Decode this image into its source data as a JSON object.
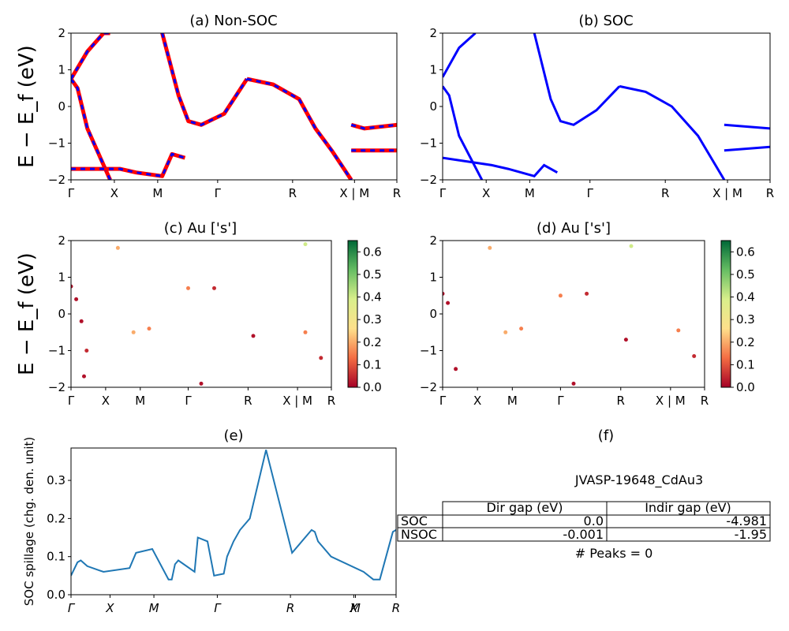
{
  "colors": {
    "red": "#ff0000",
    "blue": "#0000ff",
    "spill": "#1f77b4"
  },
  "k_labels": [
    "Γ",
    "X",
    "M",
    "Γ",
    "R",
    "X | M",
    "R"
  ],
  "k_labels_italic": [
    "Γ",
    "X",
    "M",
    "Γ",
    "R",
    "X",
    "M",
    "R"
  ],
  "energy_ticks": [
    "2",
    "1",
    "0",
    "−1",
    "−2"
  ],
  "energy_axis_label": "E − E_f (eV)",
  "colorbar_ticks": [
    "0.6",
    "0.5",
    "0.4",
    "0.3",
    "0.2",
    "0.1",
    "0.0"
  ],
  "colorbar_colormap": "RdYlGn",
  "chart_data": [
    {
      "id": "a",
      "type": "line",
      "title": "(a) Non-SOC",
      "ylabel": "E − E_f (eV)",
      "ylim": [
        -2,
        2
      ],
      "xticks": [
        "Γ",
        "X",
        "M",
        "Γ",
        "R",
        "X | M",
        "R"
      ],
      "series": [
        {
          "style": "red line with blue dashes",
          "x": [
            0,
            0.02,
            0.05,
            0.12
          ],
          "y": [
            0.75,
            0.5,
            -0.6,
            -2.0
          ]
        },
        {
          "style": "red line with blue dashes",
          "x": [
            0,
            0.05,
            0.1,
            0.12
          ],
          "y": [
            0.75,
            1.5,
            2.0,
            2.0
          ]
        },
        {
          "style": "red line with blue dashes",
          "x": [
            0.28,
            0.33,
            0.36,
            0.4,
            0.47,
            0.54
          ],
          "y": [
            2.0,
            0.3,
            -0.4,
            -0.5,
            -0.2,
            0.75
          ]
        },
        {
          "style": "red line with blue dashes",
          "x": [
            0.54,
            0.62,
            0.7,
            0.75,
            0.8,
            0.86
          ],
          "y": [
            0.75,
            0.6,
            0.2,
            -0.6,
            -1.2,
            -2.0
          ]
        },
        {
          "style": "red line with blue dashes",
          "x": [
            0.0,
            0.15,
            0.2,
            0.28,
            0.31,
            0.35
          ],
          "y": [
            -1.7,
            -1.7,
            -1.8,
            -1.9,
            -1.3,
            -1.4
          ]
        },
        {
          "style": "red line with blue dashes",
          "x": [
            0.86,
            0.9,
            1.0
          ],
          "y": [
            -0.5,
            -0.6,
            -0.5
          ]
        },
        {
          "style": "red line with blue dashes",
          "x": [
            0.86,
            1.0
          ],
          "y": [
            -1.2,
            -1.2
          ]
        }
      ]
    },
    {
      "id": "b",
      "type": "line",
      "title": "(b) SOC",
      "ylabel": "",
      "ylim": [
        -2,
        2
      ],
      "xticks": [
        "Γ",
        "X",
        "M",
        "Γ",
        "R",
        "X | M",
        "R"
      ],
      "series": [
        {
          "style": "blue",
          "x": [
            0,
            0.02,
            0.05,
            0.12
          ],
          "y": [
            0.55,
            0.3,
            -0.8,
            -2.0
          ]
        },
        {
          "style": "blue",
          "x": [
            0,
            0.05,
            0.1
          ],
          "y": [
            0.8,
            1.6,
            2.0
          ]
        },
        {
          "style": "blue",
          "x": [
            0.28,
            0.33,
            0.36,
            0.4,
            0.47,
            0.54
          ],
          "y": [
            2.0,
            0.2,
            -0.4,
            -0.5,
            -0.1,
            0.55
          ]
        },
        {
          "style": "blue",
          "x": [
            0.54,
            0.62,
            0.7,
            0.78,
            0.86
          ],
          "y": [
            0.55,
            0.4,
            0.0,
            -0.8,
            -2.0
          ]
        },
        {
          "style": "blue",
          "x": [
            0.0,
            0.15,
            0.2,
            0.28,
            0.31,
            0.35
          ],
          "y": [
            -1.4,
            -1.6,
            -1.7,
            -1.9,
            -1.6,
            -1.8
          ]
        },
        {
          "style": "blue",
          "x": [
            0.86,
            1.0
          ],
          "y": [
            -0.5,
            -0.6
          ]
        },
        {
          "style": "blue",
          "x": [
            0.86,
            1.0
          ],
          "y": [
            -1.2,
            -1.1
          ]
        }
      ]
    },
    {
      "id": "c",
      "type": "scatter",
      "title": "(c)  Au ['s']",
      "ylabel": "E − E_f (eV)",
      "ylim": [
        -2,
        2
      ],
      "xticks": [
        "Γ",
        "X",
        "M",
        "Γ",
        "R",
        "X | M",
        "R"
      ],
      "colorbar_range": [
        0.0,
        0.65
      ],
      "points": [
        [
          0.0,
          0.75,
          0.02
        ],
        [
          0.02,
          0.4,
          0.02
        ],
        [
          0.04,
          -0.2,
          0.02
        ],
        [
          0.06,
          -1.0,
          0.05
        ],
        [
          0.18,
          1.8,
          0.2
        ],
        [
          0.24,
          -0.5,
          0.2
        ],
        [
          0.3,
          -0.4,
          0.15
        ],
        [
          0.45,
          0.7,
          0.15
        ],
        [
          0.55,
          0.7,
          0.05
        ],
        [
          0.7,
          -0.6,
          0.02
        ],
        [
          0.9,
          -0.5,
          0.15
        ],
        [
          0.96,
          -1.2,
          0.05
        ],
        [
          0.05,
          -1.7,
          0.02
        ],
        [
          0.5,
          -1.9,
          0.02
        ],
        [
          0.9,
          1.9,
          0.4
        ]
      ]
    },
    {
      "id": "d",
      "type": "scatter",
      "title": "(d) Au ['s']",
      "ylabel": "",
      "ylim": [
        -2,
        2
      ],
      "xticks": [
        "Γ",
        "X",
        "M",
        "Γ",
        "R",
        "X | M",
        "R"
      ],
      "colorbar_range": [
        0.0,
        0.65
      ],
      "points": [
        [
          0.0,
          0.55,
          0.02
        ],
        [
          0.02,
          0.3,
          0.02
        ],
        [
          0.18,
          1.8,
          0.2
        ],
        [
          0.24,
          -0.5,
          0.2
        ],
        [
          0.3,
          -0.4,
          0.15
        ],
        [
          0.45,
          0.5,
          0.15
        ],
        [
          0.55,
          0.55,
          0.05
        ],
        [
          0.7,
          -0.7,
          0.02
        ],
        [
          0.9,
          -0.45,
          0.15
        ],
        [
          0.96,
          -1.15,
          0.05
        ],
        [
          0.05,
          -1.5,
          0.02
        ],
        [
          0.5,
          -1.9,
          0.02
        ],
        [
          0.72,
          1.85,
          0.4
        ]
      ]
    },
    {
      "id": "e",
      "type": "line",
      "title": "(e)",
      "ylabel": "SOC spillage (chg. den. unit)",
      "ylim": [
        0.0,
        0.385
      ],
      "yticks": [
        "0.0",
        "0.1",
        "0.2",
        "0.3"
      ],
      "xticks": [
        "Γ",
        "X",
        "M",
        "Γ",
        "R",
        "X",
        "M",
        "R"
      ],
      "series": [
        {
          "name": "",
          "x": [
            0.0,
            0.02,
            0.03,
            0.05,
            0.1,
            0.18,
            0.2,
            0.25,
            0.3,
            0.31,
            0.32,
            0.33,
            0.38,
            0.39,
            0.42,
            0.44,
            0.47,
            0.48,
            0.5,
            0.52,
            0.55,
            0.6,
            0.68,
            0.74,
            0.75,
            0.76,
            0.8,
            0.9,
            0.93,
            0.95,
            0.99,
            1.0
          ],
          "y": [
            0.05,
            0.085,
            0.09,
            0.075,
            0.06,
            0.07,
            0.11,
            0.12,
            0.04,
            0.04,
            0.08,
            0.09,
            0.06,
            0.15,
            0.14,
            0.05,
            0.055,
            0.1,
            0.14,
            0.17,
            0.2,
            0.38,
            0.11,
            0.17,
            0.165,
            0.14,
            0.1,
            0.06,
            0.04,
            0.04,
            0.165,
            0.17
          ]
        }
      ]
    }
  ],
  "panel_f": {
    "title": "(f)",
    "material": "JVASP-19648_CdAu3",
    "headers": [
      "Dir gap (eV)",
      "Indir gap (eV)"
    ],
    "rows": [
      {
        "label": "SOC",
        "dir": "0.0",
        "indir": "-4.981"
      },
      {
        "label": "NSOC",
        "dir": "-0.001",
        "indir": "-1.95"
      }
    ],
    "peaks": "# Peaks = 0"
  }
}
